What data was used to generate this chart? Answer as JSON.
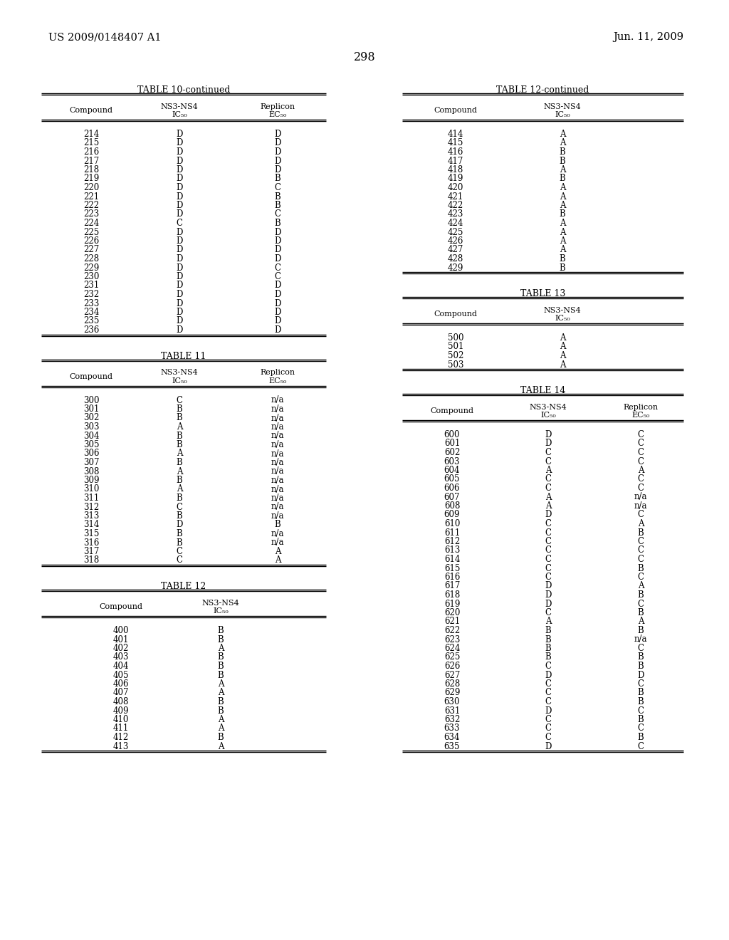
{
  "header_left": "US 2009/0148407 A1",
  "header_right": "Jun. 11, 2009",
  "page_number": "298",
  "table10_continued": {
    "title": "TABLE 10-continued",
    "rows": [
      [
        "214",
        "D",
        "D"
      ],
      [
        "215",
        "D",
        "D"
      ],
      [
        "216",
        "D",
        "D"
      ],
      [
        "217",
        "D",
        "D"
      ],
      [
        "218",
        "D",
        "D"
      ],
      [
        "219",
        "D",
        "B"
      ],
      [
        "220",
        "D",
        "C"
      ],
      [
        "221",
        "D",
        "B"
      ],
      [
        "222",
        "D",
        "B"
      ],
      [
        "223",
        "D",
        "C"
      ],
      [
        "224",
        "C",
        "B"
      ],
      [
        "225",
        "D",
        "D"
      ],
      [
        "226",
        "D",
        "D"
      ],
      [
        "227",
        "D",
        "D"
      ],
      [
        "228",
        "D",
        "D"
      ],
      [
        "229",
        "D",
        "C"
      ],
      [
        "230",
        "D",
        "C"
      ],
      [
        "231",
        "D",
        "D"
      ],
      [
        "232",
        "D",
        "D"
      ],
      [
        "233",
        "D",
        "D"
      ],
      [
        "234",
        "D",
        "D"
      ],
      [
        "235",
        "D",
        "D"
      ],
      [
        "236",
        "D",
        "D"
      ]
    ]
  },
  "table11": {
    "title": "TABLE 11",
    "rows": [
      [
        "300",
        "C",
        "n/a"
      ],
      [
        "301",
        "B",
        "n/a"
      ],
      [
        "302",
        "B",
        "n/a"
      ],
      [
        "303",
        "A",
        "n/a"
      ],
      [
        "304",
        "B",
        "n/a"
      ],
      [
        "305",
        "B",
        "n/a"
      ],
      [
        "306",
        "A",
        "n/a"
      ],
      [
        "307",
        "B",
        "n/a"
      ],
      [
        "308",
        "A",
        "n/a"
      ],
      [
        "309",
        "B",
        "n/a"
      ],
      [
        "310",
        "A",
        "n/a"
      ],
      [
        "311",
        "B",
        "n/a"
      ],
      [
        "312",
        "C",
        "n/a"
      ],
      [
        "313",
        "B",
        "n/a"
      ],
      [
        "314",
        "D",
        "B"
      ],
      [
        "315",
        "B",
        "n/a"
      ],
      [
        "316",
        "B",
        "n/a"
      ],
      [
        "317",
        "C",
        "A"
      ],
      [
        "318",
        "C",
        "A"
      ]
    ]
  },
  "table12": {
    "title": "TABLE 12",
    "rows": [
      [
        "400",
        "B"
      ],
      [
        "401",
        "B"
      ],
      [
        "402",
        "A"
      ],
      [
        "403",
        "B"
      ],
      [
        "404",
        "B"
      ],
      [
        "405",
        "B"
      ],
      [
        "406",
        "A"
      ],
      [
        "407",
        "A"
      ],
      [
        "408",
        "B"
      ],
      [
        "409",
        "B"
      ],
      [
        "410",
        "A"
      ],
      [
        "411",
        "A"
      ],
      [
        "412",
        "B"
      ],
      [
        "413",
        "A"
      ]
    ]
  },
  "table12_continued": {
    "title": "TABLE 12-continued",
    "rows": [
      [
        "414",
        "A"
      ],
      [
        "415",
        "A"
      ],
      [
        "416",
        "B"
      ],
      [
        "417",
        "B"
      ],
      [
        "418",
        "A"
      ],
      [
        "419",
        "B"
      ],
      [
        "420",
        "A"
      ],
      [
        "421",
        "A"
      ],
      [
        "422",
        "A"
      ],
      [
        "423",
        "B"
      ],
      [
        "424",
        "A"
      ],
      [
        "425",
        "A"
      ],
      [
        "426",
        "A"
      ],
      [
        "427",
        "A"
      ],
      [
        "428",
        "B"
      ],
      [
        "429",
        "B"
      ]
    ]
  },
  "table13": {
    "title": "TABLE 13",
    "rows": [
      [
        "500",
        "A"
      ],
      [
        "501",
        "A"
      ],
      [
        "502",
        "A"
      ],
      [
        "503",
        "A"
      ]
    ]
  },
  "table14": {
    "title": "TABLE 14",
    "rows": [
      [
        "600",
        "D",
        "C"
      ],
      [
        "601",
        "D",
        "C"
      ],
      [
        "602",
        "C",
        "C"
      ],
      [
        "603",
        "C",
        "C"
      ],
      [
        "604",
        "A",
        "A"
      ],
      [
        "605",
        "C",
        "C"
      ],
      [
        "606",
        "C",
        "C"
      ],
      [
        "607",
        "A",
        "n/a"
      ],
      [
        "608",
        "A",
        "n/a"
      ],
      [
        "609",
        "D",
        "C"
      ],
      [
        "610",
        "C",
        "A"
      ],
      [
        "611",
        "C",
        "B"
      ],
      [
        "612",
        "C",
        "C"
      ],
      [
        "613",
        "C",
        "C"
      ],
      [
        "614",
        "C",
        "C"
      ],
      [
        "615",
        "C",
        "B"
      ],
      [
        "616",
        "C",
        "C"
      ],
      [
        "617",
        "D",
        "A"
      ],
      [
        "618",
        "D",
        "B"
      ],
      [
        "619",
        "D",
        "C"
      ],
      [
        "620",
        "C",
        "B"
      ],
      [
        "621",
        "A",
        "A"
      ],
      [
        "622",
        "B",
        "B"
      ],
      [
        "623",
        "B",
        "n/a"
      ],
      [
        "624",
        "B",
        "C"
      ],
      [
        "625",
        "B",
        "B"
      ],
      [
        "626",
        "C",
        "B"
      ],
      [
        "627",
        "D",
        "D"
      ],
      [
        "628",
        "C",
        "C"
      ],
      [
        "629",
        "C",
        "B"
      ],
      [
        "630",
        "C",
        "B"
      ],
      [
        "631",
        "D",
        "C"
      ],
      [
        "632",
        "C",
        "B"
      ],
      [
        "633",
        "C",
        "C"
      ],
      [
        "634",
        "C",
        "B"
      ],
      [
        "635",
        "D",
        "C"
      ]
    ]
  }
}
